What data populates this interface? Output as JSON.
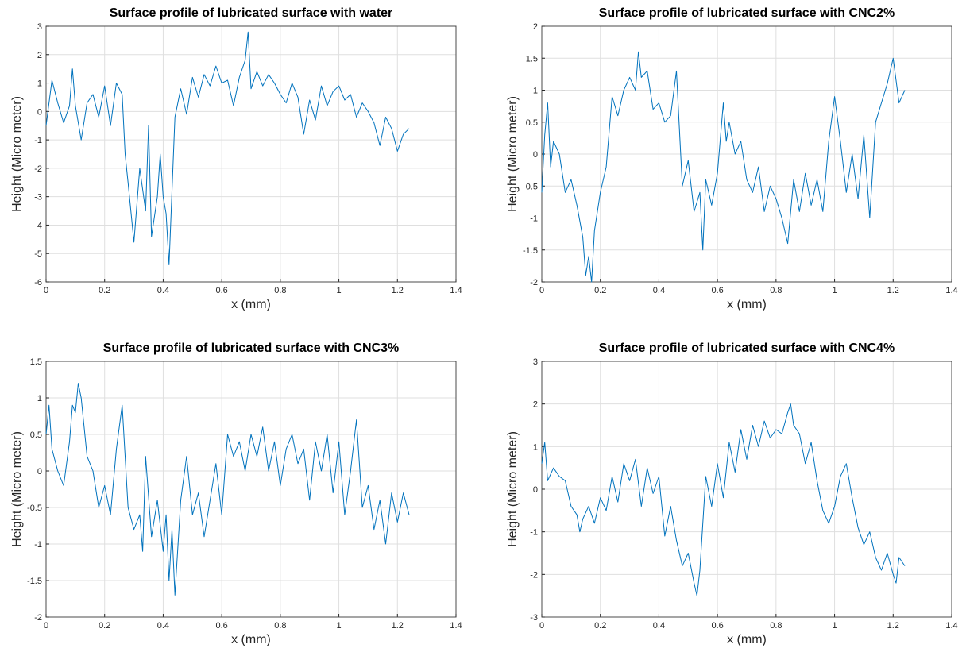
{
  "chart_data": [
    {
      "type": "line",
      "title": "Surface profile of lubricated surface with water",
      "xlabel": "x (mm)",
      "ylabel": "Height (Micro meter)",
      "xlim": [
        0,
        1.4
      ],
      "ylim": [
        -6,
        3
      ],
      "xticks": [
        0,
        0.2,
        0.4,
        0.6,
        0.8,
        1,
        1.2,
        1.4
      ],
      "xtick_labels": [
        "0",
        "0.2",
        "0.4",
        "0.6",
        "0.8",
        "1",
        "1.2",
        "1.4"
      ],
      "yticks": [
        -6,
        -5,
        -4,
        -3,
        -2,
        -1,
        0,
        1,
        2,
        3
      ],
      "ytick_labels": [
        "-6",
        "-5",
        "-4",
        "-3",
        "-2",
        "-1",
        "0",
        "1",
        "2",
        "3"
      ],
      "grid": true,
      "color": "#0072BD",
      "x": [
        0,
        0.02,
        0.04,
        0.06,
        0.08,
        0.09,
        0.1,
        0.12,
        0.14,
        0.16,
        0.18,
        0.2,
        0.22,
        0.24,
        0.26,
        0.27,
        0.28,
        0.3,
        0.32,
        0.34,
        0.35,
        0.36,
        0.38,
        0.39,
        0.4,
        0.41,
        0.42,
        0.44,
        0.46,
        0.48,
        0.5,
        0.52,
        0.54,
        0.56,
        0.58,
        0.6,
        0.62,
        0.64,
        0.66,
        0.68,
        0.69,
        0.7,
        0.72,
        0.74,
        0.76,
        0.78,
        0.8,
        0.82,
        0.84,
        0.86,
        0.88,
        0.9,
        0.92,
        0.94,
        0.96,
        0.98,
        1,
        1.02,
        1.04,
        1.06,
        1.08,
        1.1,
        1.12,
        1.14,
        1.16,
        1.18,
        1.2,
        1.22,
        1.24
      ],
      "y": [
        -0.5,
        1.1,
        0.3,
        -0.4,
        0.2,
        1.5,
        0.2,
        -1.0,
        0.3,
        0.6,
        -0.2,
        0.9,
        -0.5,
        1.0,
        0.6,
        -1.5,
        -2.5,
        -4.6,
        -2.0,
        -3.5,
        -0.5,
        -4.4,
        -3.0,
        -1.5,
        -3.0,
        -3.6,
        -5.4,
        -0.2,
        0.8,
        -0.1,
        1.2,
        0.5,
        1.3,
        0.9,
        1.6,
        1.0,
        1.1,
        0.2,
        1.2,
        1.8,
        2.8,
        0.8,
        1.4,
        0.9,
        1.3,
        1.0,
        0.6,
        0.3,
        1.0,
        0.5,
        -0.8,
        0.4,
        -0.3,
        0.9,
        0.2,
        0.7,
        0.9,
        0.4,
        0.6,
        -0.2,
        0.3,
        0.0,
        -0.4,
        -1.2,
        -0.2,
        -0.6,
        -1.4,
        -0.8,
        -0.6
      ]
    },
    {
      "type": "line",
      "title": "Surface profile of lubricated surface with CNC2%",
      "xlabel": "x (mm)",
      "ylabel": "Height (Micro meter)",
      "xlim": [
        0,
        1.4
      ],
      "ylim": [
        -2,
        2
      ],
      "xticks": [
        0,
        0.2,
        0.4,
        0.6,
        0.8,
        1,
        1.2,
        1.4
      ],
      "xtick_labels": [
        "0",
        "0.2",
        "0.4",
        "0.6",
        "0.8",
        "1",
        "1.2",
        "1.4"
      ],
      "yticks": [
        -2,
        -1.5,
        -1,
        -0.5,
        0,
        0.5,
        1,
        1.5,
        2
      ],
      "ytick_labels": [
        "-2",
        "-1.5",
        "-1",
        "-0.5",
        "0",
        "0.5",
        "1",
        "1.5",
        "2"
      ],
      "grid": true,
      "color": "#0072BD",
      "x": [
        0,
        0.01,
        0.02,
        0.03,
        0.04,
        0.06,
        0.08,
        0.1,
        0.12,
        0.14,
        0.15,
        0.16,
        0.17,
        0.18,
        0.2,
        0.22,
        0.24,
        0.26,
        0.28,
        0.3,
        0.32,
        0.33,
        0.34,
        0.36,
        0.38,
        0.4,
        0.42,
        0.44,
        0.46,
        0.48,
        0.5,
        0.52,
        0.54,
        0.55,
        0.56,
        0.58,
        0.6,
        0.62,
        0.63,
        0.64,
        0.66,
        0.68,
        0.7,
        0.72,
        0.74,
        0.76,
        0.78,
        0.8,
        0.82,
        0.84,
        0.86,
        0.88,
        0.9,
        0.92,
        0.94,
        0.96,
        0.98,
        1,
        1.02,
        1.04,
        1.06,
        1.08,
        1.1,
        1.12,
        1.14,
        1.16,
        1.18,
        1.2,
        1.22,
        1.24
      ],
      "y": [
        -0.6,
        0.3,
        0.8,
        -0.2,
        0.2,
        0.0,
        -0.6,
        -0.4,
        -0.8,
        -1.3,
        -1.9,
        -1.6,
        -2.0,
        -1.2,
        -0.6,
        -0.2,
        0.9,
        0.6,
        1.0,
        1.2,
        1.0,
        1.6,
        1.2,
        1.3,
        0.7,
        0.8,
        0.5,
        0.6,
        1.3,
        -0.5,
        -0.1,
        -0.9,
        -0.6,
        -1.5,
        -0.4,
        -0.8,
        -0.3,
        0.8,
        0.2,
        0.5,
        0.0,
        0.2,
        -0.4,
        -0.6,
        -0.2,
        -0.9,
        -0.5,
        -0.7,
        -1.0,
        -1.4,
        -0.4,
        -0.9,
        -0.3,
        -0.8,
        -0.4,
        -0.9,
        0.2,
        0.9,
        0.2,
        -0.6,
        0.0,
        -0.7,
        0.3,
        -1.0,
        0.5,
        0.8,
        1.1,
        1.5,
        0.8,
        1.0
      ]
    },
    {
      "type": "line",
      "title": "Surface profile of lubricated surface with CNC3%",
      "xlabel": "x (mm)",
      "ylabel": "Height (Micro meter)",
      "xlim": [
        0,
        1.4
      ],
      "ylim": [
        -2,
        1.5
      ],
      "xticks": [
        0,
        0.2,
        0.4,
        0.6,
        0.8,
        1,
        1.2,
        1.4
      ],
      "xtick_labels": [
        "0",
        "0.2",
        "0.4",
        "0.6",
        "0.8",
        "1",
        "1.2",
        "1.4"
      ],
      "yticks": [
        -2,
        -1.5,
        -1,
        -0.5,
        0,
        0.5,
        1,
        1.5
      ],
      "ytick_labels": [
        "-2",
        "-1.5",
        "-1",
        "-0.5",
        "0",
        "0.5",
        "1",
        "1.5"
      ],
      "grid": true,
      "color": "#0072BD",
      "x": [
        0,
        0.01,
        0.02,
        0.04,
        0.06,
        0.08,
        0.09,
        0.1,
        0.11,
        0.12,
        0.14,
        0.16,
        0.18,
        0.2,
        0.22,
        0.24,
        0.26,
        0.28,
        0.3,
        0.32,
        0.33,
        0.34,
        0.36,
        0.38,
        0.4,
        0.41,
        0.42,
        0.43,
        0.44,
        0.46,
        0.48,
        0.5,
        0.52,
        0.54,
        0.56,
        0.58,
        0.6,
        0.62,
        0.64,
        0.66,
        0.68,
        0.7,
        0.72,
        0.74,
        0.76,
        0.78,
        0.8,
        0.82,
        0.84,
        0.86,
        0.88,
        0.9,
        0.92,
        0.94,
        0.96,
        0.98,
        1,
        1.02,
        1.04,
        1.06,
        1.08,
        1.1,
        1.12,
        1.14,
        1.16,
        1.18,
        1.2,
        1.22,
        1.24
      ],
      "y": [
        0.5,
        0.9,
        0.3,
        0.0,
        -0.2,
        0.4,
        0.9,
        0.8,
        1.2,
        1.0,
        0.2,
        0.0,
        -0.5,
        -0.2,
        -0.6,
        0.3,
        0.9,
        -0.5,
        -0.8,
        -0.6,
        -1.1,
        0.2,
        -0.9,
        -0.4,
        -1.1,
        -0.6,
        -1.5,
        -0.8,
        -1.7,
        -0.4,
        0.2,
        -0.6,
        -0.3,
        -0.9,
        -0.4,
        0.1,
        -0.6,
        0.5,
        0.2,
        0.4,
        0.0,
        0.5,
        0.2,
        0.6,
        0.0,
        0.4,
        -0.2,
        0.3,
        0.5,
        0.1,
        0.3,
        -0.4,
        0.4,
        0.0,
        0.5,
        -0.3,
        0.4,
        -0.6,
        0.0,
        0.7,
        -0.5,
        -0.2,
        -0.8,
        -0.4,
        -1.0,
        -0.3,
        -0.7,
        -0.3,
        -0.6
      ]
    },
    {
      "type": "line",
      "title": "Surface profile of lubricated surface with CNC4%",
      "xlabel": "x (mm)",
      "ylabel": "Height (Micro meter)",
      "xlim": [
        0,
        1.4
      ],
      "ylim": [
        -3,
        3
      ],
      "xticks": [
        0,
        0.2,
        0.4,
        0.6,
        0.8,
        1,
        1.2,
        1.4
      ],
      "xtick_labels": [
        "0",
        "0.2",
        "0.4",
        "0.6",
        "0.8",
        "1",
        "1.2",
        "1.4"
      ],
      "yticks": [
        -3,
        -2,
        -1,
        0,
        1,
        2,
        3
      ],
      "ytick_labels": [
        "-3",
        "-2",
        "-1",
        "0",
        "1",
        "2",
        "3"
      ],
      "grid": true,
      "color": "#0072BD",
      "x": [
        0,
        0.01,
        0.02,
        0.04,
        0.06,
        0.08,
        0.1,
        0.12,
        0.13,
        0.14,
        0.16,
        0.18,
        0.2,
        0.22,
        0.24,
        0.26,
        0.28,
        0.3,
        0.32,
        0.34,
        0.36,
        0.38,
        0.4,
        0.42,
        0.44,
        0.46,
        0.48,
        0.5,
        0.52,
        0.53,
        0.54,
        0.56,
        0.58,
        0.6,
        0.62,
        0.64,
        0.66,
        0.68,
        0.7,
        0.72,
        0.74,
        0.76,
        0.78,
        0.8,
        0.82,
        0.84,
        0.85,
        0.86,
        0.88,
        0.9,
        0.92,
        0.94,
        0.96,
        0.98,
        1,
        1.02,
        1.04,
        1.06,
        1.08,
        1.1,
        1.12,
        1.14,
        1.16,
        1.18,
        1.2,
        1.21,
        1.22,
        1.24
      ],
      "y": [
        0.6,
        1.1,
        0.2,
        0.5,
        0.3,
        0.2,
        -0.4,
        -0.6,
        -1.0,
        -0.7,
        -0.4,
        -0.8,
        -0.2,
        -0.5,
        0.3,
        -0.3,
        0.6,
        0.2,
        0.7,
        -0.4,
        0.5,
        -0.1,
        0.3,
        -1.1,
        -0.4,
        -1.2,
        -1.8,
        -1.5,
        -2.2,
        -2.5,
        -1.9,
        0.3,
        -0.4,
        0.6,
        -0.2,
        1.1,
        0.4,
        1.4,
        0.7,
        1.5,
        1.0,
        1.6,
        1.2,
        1.4,
        1.3,
        1.8,
        2.0,
        1.5,
        1.3,
        0.6,
        1.1,
        0.2,
        -0.5,
        -0.8,
        -0.4,
        0.3,
        0.6,
        -0.2,
        -0.9,
        -1.3,
        -1.0,
        -1.6,
        -1.9,
        -1.5,
        -2.0,
        -2.2,
        -1.6,
        -1.8
      ]
    }
  ]
}
